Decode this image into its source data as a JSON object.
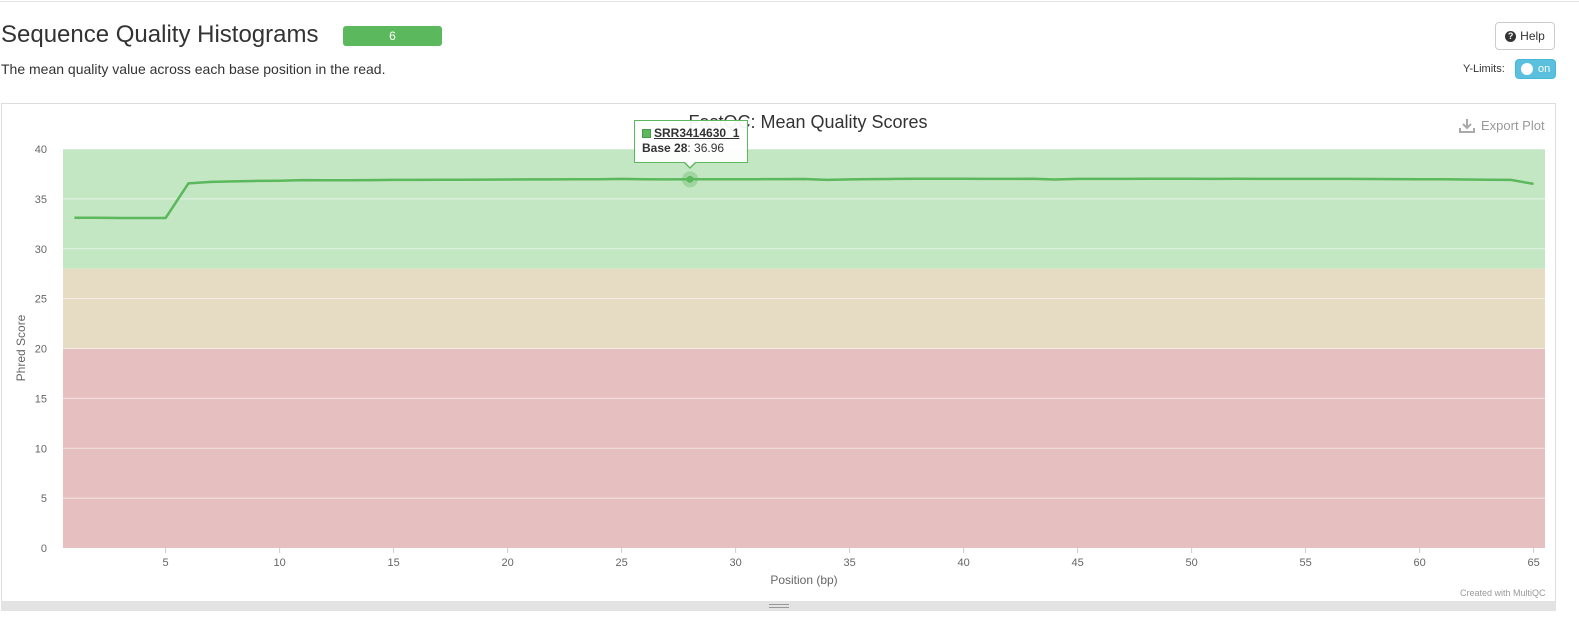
{
  "header": {
    "title": "Sequence Quality Histograms",
    "badge": "6",
    "description": "The mean quality value across each base position in the read.",
    "help_label": "Help",
    "ylimits_label": "Y-Limits:",
    "ylimits_value": "on"
  },
  "plot": {
    "export_label": "Export Plot",
    "credit": "Created with MultiQC"
  },
  "tooltip": {
    "sample": "SRR3414630_1",
    "base_label": "Base 28",
    "value": ": 36.96"
  },
  "colors": {
    "line": "#5cb85c",
    "band_good": "#c3e6c3",
    "band_warn": "#e6dcc3",
    "band_fail": "#e6c0c0"
  },
  "chart_data": {
    "type": "line",
    "title": "FastQC: Mean Quality Scores",
    "xlabel": "Position (bp)",
    "ylabel": "Phred Score",
    "xlim": [
      0.5,
      65.5
    ],
    "ylim": [
      0,
      40
    ],
    "x_ticks": [
      5,
      10,
      15,
      20,
      25,
      30,
      35,
      40,
      45,
      50,
      55,
      60,
      65
    ],
    "y_ticks": [
      0,
      5,
      10,
      15,
      20,
      25,
      30,
      35,
      40
    ],
    "bands": [
      {
        "from": 28,
        "to": 40,
        "color": "#c3e6c3"
      },
      {
        "from": 20,
        "to": 28,
        "color": "#e6dcc3"
      },
      {
        "from": 0,
        "to": 20,
        "color": "#e6c0c0"
      }
    ],
    "series": [
      {
        "name": "SRR3414630_1",
        "x": [
          1,
          2,
          3,
          4,
          5,
          6,
          7,
          8,
          9,
          10,
          11,
          12,
          13,
          14,
          15,
          16,
          17,
          18,
          19,
          20,
          21,
          22,
          23,
          24,
          25,
          26,
          27,
          28,
          29,
          30,
          31,
          32,
          33,
          34,
          35,
          36,
          37,
          38,
          39,
          40,
          41,
          42,
          43,
          44,
          45,
          46,
          47,
          48,
          49,
          50,
          51,
          52,
          53,
          54,
          55,
          56,
          57,
          58,
          59,
          60,
          61,
          62,
          63,
          64,
          65
        ],
        "values": [
          33.1,
          33.1,
          33.08,
          33.08,
          33.08,
          36.55,
          36.7,
          36.75,
          36.8,
          36.82,
          36.88,
          36.86,
          36.87,
          36.88,
          36.9,
          36.9,
          36.92,
          36.92,
          36.93,
          36.94,
          36.95,
          36.95,
          36.96,
          36.97,
          37.0,
          36.96,
          36.95,
          36.96,
          36.96,
          36.96,
          36.97,
          36.98,
          36.99,
          36.9,
          36.95,
          36.98,
          37.0,
          37.02,
          37.02,
          37.02,
          37.0,
          37.0,
          37.02,
          36.94,
          37.0,
          37.0,
          37.0,
          37.01,
          37.01,
          37.01,
          37.0,
          37.01,
          37.0,
          37.0,
          37.0,
          37.0,
          37.0,
          36.99,
          36.98,
          36.97,
          36.96,
          36.94,
          36.92,
          36.9,
          36.5
        ]
      }
    ],
    "hover": {
      "x": 28,
      "y": 36.96
    }
  }
}
